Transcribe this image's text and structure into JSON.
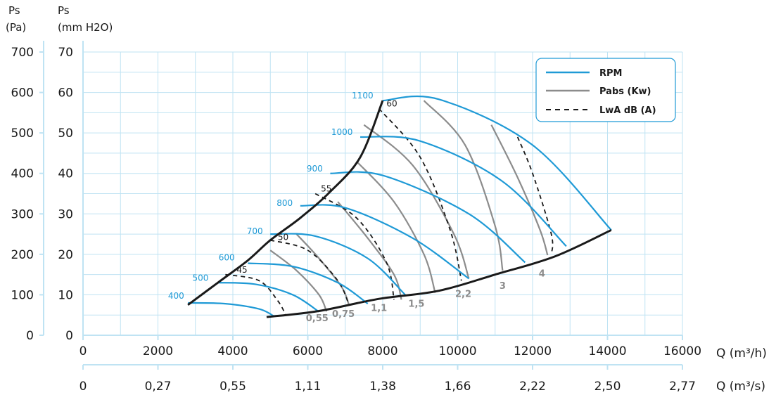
{
  "chart_data": {
    "type": "line",
    "colors": {
      "rpm": "#1f9ad6",
      "pabs": "#8c8c8c",
      "lwa": "#1a1a1a",
      "envelope": "#1a1a1a",
      "grid": "#bfe3f3",
      "axis": "#bfe3f3"
    },
    "y_label_pa": [
      "Ps",
      "(Pa)"
    ],
    "y_label_mm": [
      "Ps",
      "(mm H2O)"
    ],
    "x_label_m3h": "Q (m³/h)",
    "x_label_m3s": "Q (m³/s)",
    "xlim": [
      0,
      16000
    ],
    "ylim": [
      0,
      70
    ],
    "grid": true,
    "legend_position": "top-right",
    "x_ticks_m3h": [
      "0",
      "2000",
      "4000",
      "6000",
      "8000",
      "10000",
      "12000",
      "14000",
      "16000"
    ],
    "x_ticks_m3s": [
      "0",
      "0,27",
      "0,55",
      "1,11",
      "1,38",
      "1,66",
      "2,22",
      "2,50",
      "2,77"
    ],
    "y_ticks_mm": [
      "0",
      "10",
      "20",
      "30",
      "40",
      "50",
      "60",
      "70"
    ],
    "y_ticks_pa": [
      "0",
      "100",
      "200",
      "300",
      "400",
      "500",
      "600",
      "700"
    ],
    "legend": [
      {
        "label": "RPM",
        "style": "rpm"
      },
      {
        "label": "Pabs (Kw)",
        "style": "pabs"
      },
      {
        "label": "LwA dB (A)",
        "style": "lwa"
      }
    ],
    "envelope_left": [
      [
        2800,
        7.5
      ],
      [
        3600,
        13
      ],
      [
        4400,
        18.5
      ],
      [
        5000,
        23.5
      ],
      [
        5800,
        29
      ],
      [
        6600,
        35.5
      ],
      [
        7400,
        44
      ],
      [
        8000,
        58
      ]
    ],
    "envelope_bottom": [
      [
        4900,
        4.5
      ],
      [
        6300,
        6
      ],
      [
        7900,
        9
      ],
      [
        9500,
        11
      ],
      [
        11000,
        15
      ],
      [
        12600,
        19.5
      ],
      [
        14100,
        26
      ]
    ],
    "rpm_curves": [
      {
        "label": "400",
        "label_at": [
          2700,
          9
        ],
        "points": [
          [
            2800,
            8
          ],
          [
            3800,
            7.8
          ],
          [
            4700,
            6.5
          ],
          [
            5100,
            4.7
          ]
        ]
      },
      {
        "label": "500",
        "label_at": [
          3350,
          13.5
        ],
        "points": [
          [
            3600,
            13
          ],
          [
            4600,
            12.6
          ],
          [
            5600,
            10
          ],
          [
            6300,
            5.8
          ]
        ]
      },
      {
        "label": "600",
        "label_at": [
          4050,
          18.5
        ],
        "points": [
          [
            4400,
            17.8
          ],
          [
            5600,
            17
          ],
          [
            6800,
            13
          ],
          [
            7600,
            7.8
          ]
        ]
      },
      {
        "label": "700",
        "label_at": [
          4800,
          25
        ],
        "points": [
          [
            5000,
            25
          ],
          [
            6200,
            24.5
          ],
          [
            7600,
            19
          ],
          [
            8600,
            10
          ]
        ]
      },
      {
        "label": "800",
        "label_at": [
          5600,
          32
        ],
        "points": [
          [
            5800,
            32
          ],
          [
            7000,
            31.5
          ],
          [
            8800,
            24
          ],
          [
            10300,
            14
          ]
        ]
      },
      {
        "label": "900",
        "label_at": [
          6400,
          40.5
        ],
        "points": [
          [
            6600,
            40
          ],
          [
            8000,
            39.5
          ],
          [
            10300,
            30
          ],
          [
            11800,
            18
          ]
        ]
      },
      {
        "label": "1000",
        "label_at": [
          7200,
          49.5
        ],
        "points": [
          [
            7400,
            49
          ],
          [
            9000,
            48
          ],
          [
            11200,
            38
          ],
          [
            12900,
            22
          ]
        ]
      },
      {
        "label": "1100",
        "label_at": [
          7750,
          58.5
        ],
        "points": [
          [
            8000,
            58
          ],
          [
            9500,
            58.3
          ],
          [
            12000,
            47
          ],
          [
            14100,
            26
          ]
        ]
      }
    ],
    "pabs_curves": [
      {
        "label": "0,55",
        "label_at": [
          6250,
          3.5
        ],
        "points": [
          [
            5000,
            21
          ],
          [
            5700,
            16
          ],
          [
            6300,
            10
          ],
          [
            6500,
            5.9
          ]
        ]
      },
      {
        "label": "0,75",
        "label_at": [
          6950,
          4.5
        ],
        "points": [
          [
            5700,
            25
          ],
          [
            6300,
            19
          ],
          [
            6900,
            12
          ],
          [
            7100,
            7.5
          ]
        ]
      },
      {
        "label": "1,1",
        "label_at": [
          7900,
          6
        ],
        "points": [
          [
            6800,
            33
          ],
          [
            7600,
            24
          ],
          [
            8300,
            15
          ],
          [
            8500,
            8.8
          ]
        ]
      },
      {
        "label": "1,5",
        "label_at": [
          8900,
          7
        ],
        "points": [
          [
            7300,
            43
          ],
          [
            8300,
            33
          ],
          [
            9100,
            20
          ],
          [
            9400,
            10.5
          ]
        ]
      },
      {
        "label": "2,2",
        "label_at": [
          10150,
          9.5
        ],
        "points": [
          [
            7500,
            52
          ],
          [
            8800,
            42
          ],
          [
            9900,
            25
          ],
          [
            10300,
            14
          ]
        ]
      },
      {
        "label": "3",
        "label_at": [
          11200,
          11.5
        ],
        "points": [
          [
            9100,
            58
          ],
          [
            10200,
            47
          ],
          [
            11000,
            27
          ],
          [
            11200,
            16
          ]
        ]
      },
      {
        "label": "4",
        "label_at": [
          12250,
          14.5
        ],
        "points": [
          [
            10900,
            52
          ],
          [
            11600,
            39
          ],
          [
            12200,
            26
          ],
          [
            12400,
            19.8
          ]
        ]
      }
    ],
    "lwa_curves": [
      {
        "label": "45",
        "label_at": [
          4100,
          15.5
        ],
        "points": [
          [
            3800,
            15
          ],
          [
            4700,
            13.5
          ],
          [
            5200,
            8.5
          ],
          [
            5400,
            5.2
          ]
        ]
      },
      {
        "label": "50",
        "label_at": [
          5200,
          23.5
        ],
        "points": [
          [
            5000,
            23.5
          ],
          [
            6000,
            21
          ],
          [
            6800,
            13.5
          ],
          [
            7100,
            7.5
          ]
        ]
      },
      {
        "label": "55",
        "label_at": [
          6350,
          35.5
        ],
        "points": [
          [
            6200,
            35
          ],
          [
            7300,
            29
          ],
          [
            8100,
            18
          ],
          [
            8300,
            8.8
          ]
        ]
      },
      {
        "label": "60",
        "label_at": [
          8100,
          56.5
        ],
        "points": [
          [
            7900,
            56
          ],
          [
            9000,
            44
          ],
          [
            9800,
            26
          ],
          [
            10100,
            13.5
          ]
        ]
      },
      {
        "label": "",
        "label_at": [
          0,
          0
        ],
        "points": [
          [
            11600,
            49
          ],
          [
            12000,
            40
          ],
          [
            12500,
            25
          ],
          [
            12500,
            20
          ]
        ]
      }
    ]
  }
}
